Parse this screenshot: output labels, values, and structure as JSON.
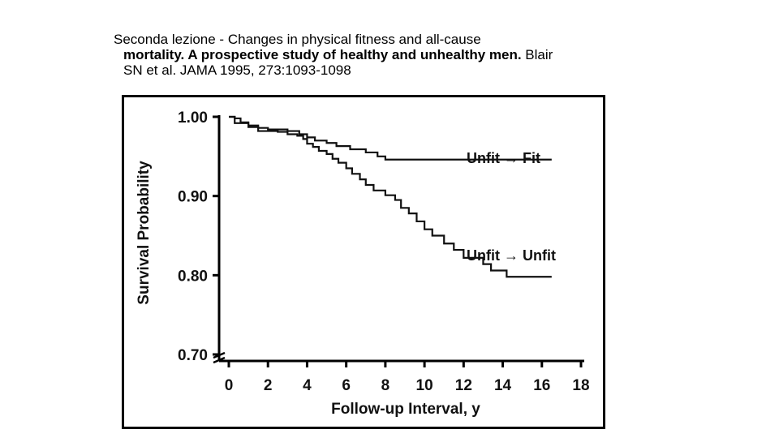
{
  "caption": {
    "line1": "Seconda lezione - Changes in physical fitness and all-cause",
    "line2_bold": "mortality. A prospective study of healthy and unhealthy men.",
    "line2_rest": " Blair",
    "line3": "SN et al. JAMA 1995, 273:1093-1098"
  },
  "chart_data": {
    "type": "line",
    "title": "",
    "xlabel": "Follow-up Interval, y",
    "ylabel": "Survival Probability",
    "xlim": [
      0,
      18
    ],
    "ylim": [
      0.7,
      1.0
    ],
    "x_ticks": [
      0,
      2,
      4,
      6,
      8,
      10,
      12,
      14,
      16,
      18
    ],
    "x_tick_labels": [
      "0",
      "2",
      "4",
      "6",
      "8",
      "10",
      "12",
      "14",
      "16",
      "18"
    ],
    "y_ticks": [
      1.0,
      0.9,
      0.8,
      0.7
    ],
    "y_tick_labels": [
      "1.00",
      "0.90",
      "0.80",
      "0.70"
    ],
    "grid": false,
    "series": [
      {
        "name": "Unfit → Fit",
        "style": "step",
        "points": [
          [
            0,
            1.0
          ],
          [
            0.3,
            0.998
          ],
          [
            0.6,
            0.993
          ],
          [
            1.0,
            0.989
          ],
          [
            1.5,
            0.986
          ],
          [
            2.0,
            0.984
          ],
          [
            3.0,
            0.982
          ],
          [
            3.6,
            0.978
          ],
          [
            4.0,
            0.974
          ],
          [
            4.4,
            0.97
          ],
          [
            5.0,
            0.967
          ],
          [
            5.5,
            0.963
          ],
          [
            6.2,
            0.959
          ],
          [
            7.0,
            0.955
          ],
          [
            7.6,
            0.95
          ],
          [
            8.0,
            0.946
          ],
          [
            9.0,
            0.946
          ],
          [
            16.5,
            0.946
          ]
        ]
      },
      {
        "name": "Unfit → Unfit",
        "style": "step",
        "points": [
          [
            0,
            1.0
          ],
          [
            0.3,
            0.992
          ],
          [
            1.0,
            0.987
          ],
          [
            1.5,
            0.982
          ],
          [
            2.5,
            0.981
          ],
          [
            3.0,
            0.978
          ],
          [
            3.5,
            0.976
          ],
          [
            3.8,
            0.972
          ],
          [
            4.0,
            0.966
          ],
          [
            4.3,
            0.962
          ],
          [
            4.6,
            0.957
          ],
          [
            5.0,
            0.953
          ],
          [
            5.3,
            0.947
          ],
          [
            5.6,
            0.942
          ],
          [
            6.0,
            0.935
          ],
          [
            6.3,
            0.928
          ],
          [
            6.7,
            0.921
          ],
          [
            7.0,
            0.914
          ],
          [
            7.4,
            0.907
          ],
          [
            8.0,
            0.901
          ],
          [
            8.5,
            0.895
          ],
          [
            8.8,
            0.885
          ],
          [
            9.2,
            0.878
          ],
          [
            9.6,
            0.868
          ],
          [
            10.0,
            0.858
          ],
          [
            10.4,
            0.85
          ],
          [
            11.0,
            0.84
          ],
          [
            11.5,
            0.832
          ],
          [
            12.0,
            0.822
          ],
          [
            13.0,
            0.814
          ],
          [
            13.4,
            0.806
          ],
          [
            14.2,
            0.798
          ],
          [
            16.0,
            0.798
          ],
          [
            16.5,
            0.798
          ]
        ]
      }
    ]
  },
  "labels": {
    "series_1": "Unfit → Fit",
    "series_2": "Unfit → Unfit"
  }
}
